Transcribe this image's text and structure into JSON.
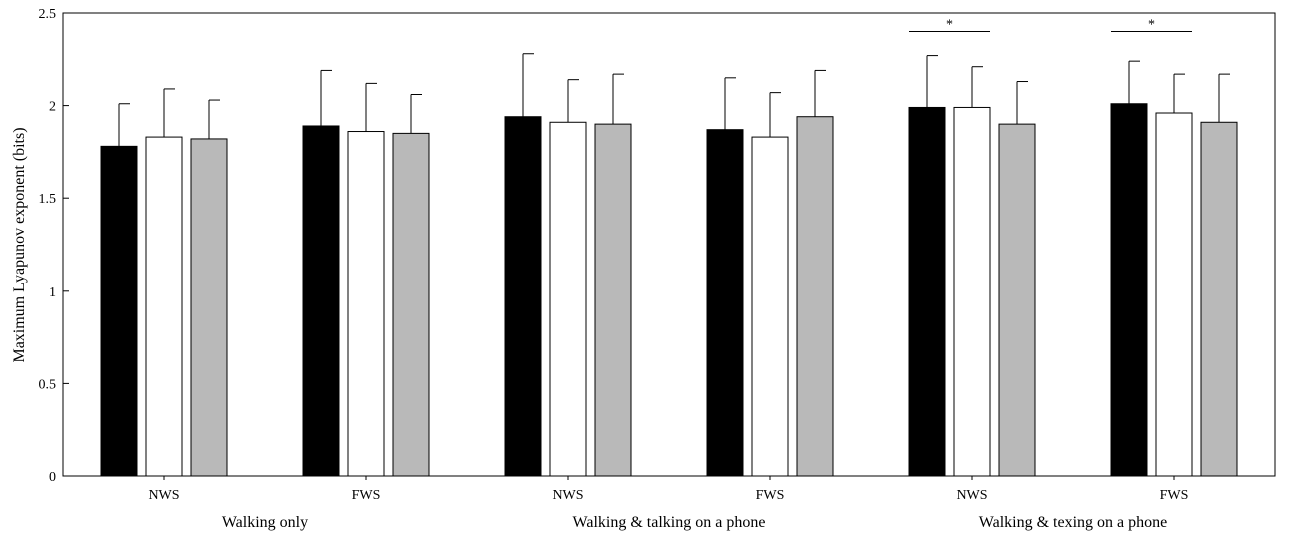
{
  "chart_data": {
    "type": "bar",
    "ylabel": "Maximum Lyapunov exponent (bits)",
    "ylim": [
      0,
      2.5
    ],
    "yticks": [
      "0",
      "0.5",
      "1",
      "1.5",
      "2",
      "2.5"
    ],
    "grid": false,
    "legend": "none",
    "categories": [
      "NWS",
      "FWS",
      "NWS",
      "FWS",
      "NWS",
      "FWS"
    ],
    "conditions": [
      "Walking only",
      "Walking & talking on a phone",
      "Walking & texing on a phone"
    ],
    "series": [
      {
        "color": "#000000",
        "values": [
          1.78,
          1.89,
          1.94,
          1.87,
          1.99,
          2.01
        ],
        "errors": [
          0.23,
          0.3,
          0.34,
          0.28,
          0.28,
          0.23
        ]
      },
      {
        "color": "#ffffff",
        "values": [
          1.83,
          1.86,
          1.91,
          1.83,
          1.99,
          1.96
        ],
        "errors": [
          0.26,
          0.26,
          0.23,
          0.24,
          0.22,
          0.21
        ]
      },
      {
        "color": "#b9b9b9",
        "values": [
          1.82,
          1.85,
          1.9,
          1.94,
          1.9,
          1.91
        ],
        "errors": [
          0.21,
          0.21,
          0.27,
          0.25,
          0.23,
          0.26
        ]
      }
    ],
    "annotations": [
      {
        "text": "*",
        "category_index": 4,
        "from_series": 0,
        "to_series": 1,
        "y": 2.4
      },
      {
        "text": "*",
        "category_index": 5,
        "from_series": 0,
        "to_series": 1,
        "y": 2.4
      }
    ]
  }
}
